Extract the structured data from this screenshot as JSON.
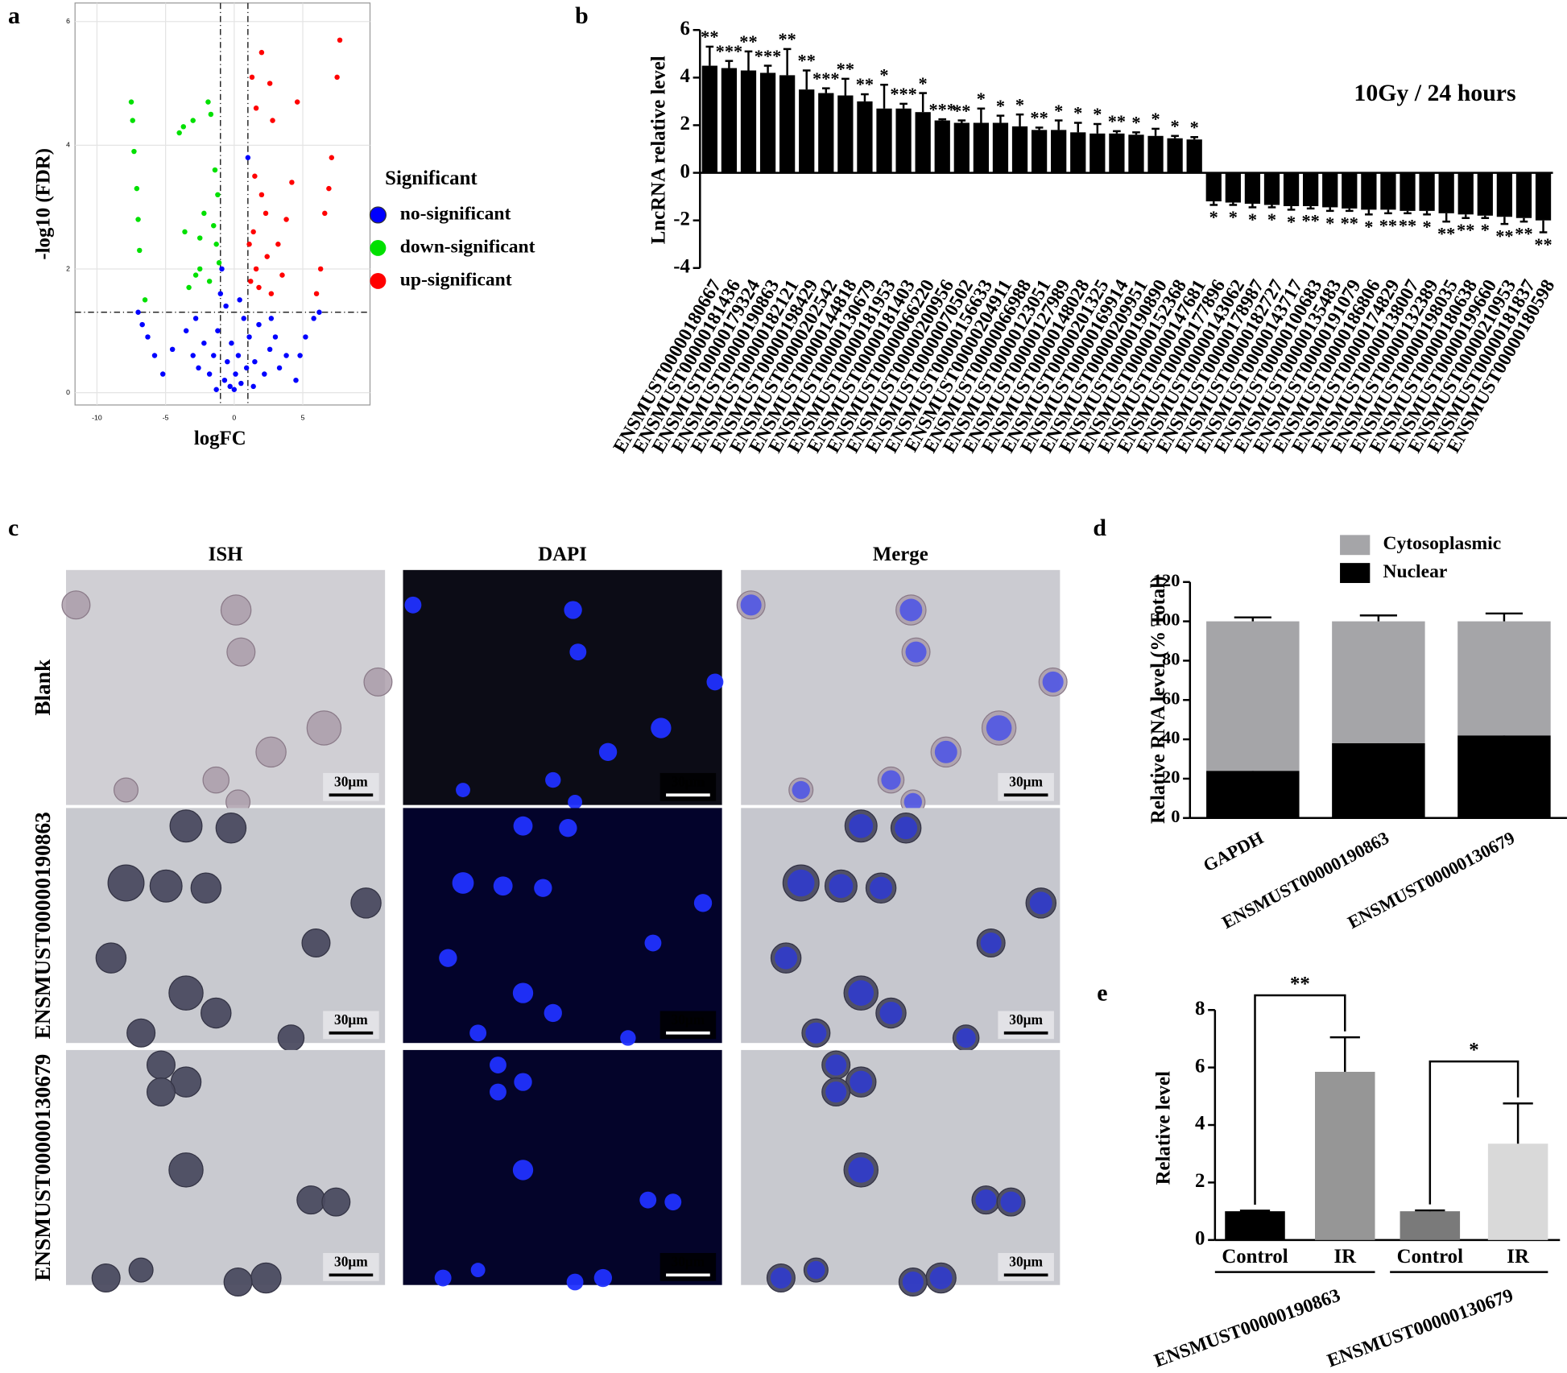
{
  "panel_labels": [
    "a",
    "b",
    "c",
    "d",
    "e"
  ],
  "image_panel": {
    "columns": [
      "ISH",
      "DAPI",
      "Merge"
    ],
    "rows": [
      "Blank",
      "ENSMUST00000190863",
      "ENSMUST00000130679"
    ],
    "scale_bar": "30μm"
  },
  "chart_data": [
    {
      "type": "scatter",
      "xlabel": "logFC",
      "ylabel": "-log10 (FDR)",
      "legend_title": "Significant",
      "xlim": [
        -11.6,
        9.9
      ],
      "ylim": [
        -0.2,
        6.3
      ],
      "xticks": [
        -10,
        -5,
        0,
        5
      ],
      "yticks": [
        0,
        2,
        4,
        6
      ],
      "grid": true,
      "vlines": [
        -1,
        1
      ],
      "hline": 1.3,
      "series": [
        {
          "name": "no-significant",
          "color": "#0000ff",
          "x": [
            -7,
            -6.7,
            -6.3,
            -5.8,
            -5.2,
            -4.5,
            -3.5,
            -3,
            -2.6,
            -2.2,
            -1.8,
            -1.5,
            -1.2,
            -1,
            -0.9,
            -0.7,
            -0.5,
            -0.3,
            -0.2,
            0,
            0.1,
            0.3,
            0.5,
            0.7,
            0.9,
            1.1,
            1.0,
            1.5,
            1.8,
            2.2,
            2.6,
            3,
            3.3,
            3.8,
            4.5,
            4.8,
            5.2,
            5.8,
            6.2,
            -0.6,
            0.4,
            -1.3,
            1.4,
            -2.8,
            2.7
          ],
          "y": [
            1.3,
            1.1,
            0.9,
            0.6,
            0.3,
            0.7,
            1.0,
            0.6,
            0.4,
            0.8,
            0.3,
            0.6,
            1.0,
            1.6,
            2.0,
            0.2,
            0.5,
            0.1,
            0.8,
            0.05,
            0.3,
            0.6,
            0.15,
            1.2,
            0.4,
            0.9,
            3.8,
            0.5,
            1.1,
            0.3,
            0.7,
            0.9,
            0.4,
            0.6,
            0.2,
            0.6,
            0.9,
            1.2,
            1.3,
            1.4,
            1.5,
            0.05,
            0.1,
            1.2,
            1.2
          ]
        },
        {
          "name": "down-significant",
          "color": "#00e000",
          "x": [
            -7.5,
            -7.4,
            -7.3,
            -7.1,
            -7,
            -6.9,
            -6.5,
            -4,
            -3.7,
            -3,
            -2.5,
            -2.2,
            -1.9,
            -1.7,
            -1.4,
            -1.2,
            -1.5,
            -2.8,
            -3.3,
            -1.8,
            -1.1,
            -2.5,
            -3.6,
            -1.3
          ],
          "y": [
            4.7,
            4.4,
            3.9,
            3.3,
            2.8,
            2.3,
            1.5,
            4.2,
            4.3,
            4.4,
            2.5,
            2.9,
            4.7,
            4.5,
            3.6,
            3.2,
            2.7,
            1.9,
            1.7,
            1.8,
            2.1,
            2.0,
            2.6,
            2.4
          ]
        },
        {
          "name": "up-significant",
          "color": "#ff0000",
          "x": [
            7.7,
            7.5,
            7.1,
            6.9,
            6.6,
            6.3,
            6,
            2,
            1.3,
            2.6,
            1.6,
            4.6,
            2.8,
            1.5,
            4.2,
            2,
            3.8,
            1.4,
            2.4,
            3.2,
            1.2,
            1.8,
            2.7,
            3.5,
            1.6,
            2.3,
            1.1
          ],
          "y": [
            5.7,
            5.1,
            3.8,
            3.3,
            2.9,
            2.0,
            1.6,
            5.5,
            5.1,
            5.0,
            4.6,
            4.7,
            4.4,
            3.5,
            3.4,
            3.2,
            2.8,
            2.6,
            2.2,
            2.4,
            1.8,
            1.7,
            1.6,
            1.9,
            2.0,
            2.9,
            2.4
          ]
        }
      ]
    },
    {
      "type": "bar",
      "title": "10Gy / 24 hours",
      "ylabel": "LncRNA relative level",
      "color": "#000000",
      "ylim": [
        -4,
        6
      ],
      "yticks": [
        -4,
        -2,
        0,
        2,
        4,
        6
      ],
      "categories": [
        "ENSMUST00000180667",
        "ENSMUST00000181436",
        "ENSMUST00000179324",
        "ENSMUST00000190863",
        "ENSMUST00000182121",
        "ENSMUST00000198429",
        "ENSMUST00000202542",
        "ENSMUST00000144818",
        "ENSMUST00000130679",
        "ENSMUST00000181953",
        "ENSMUST00000181403",
        "ENSMUST00000066220",
        "ENSMUST00000200956",
        "ENSMUST00000070502",
        "ENSMUST00000156633",
        "ENSMUST00000204911",
        "ENSMUST00000066988",
        "ENSMUST00000123051",
        "ENSMUST00000127989",
        "ENSMUST00000148028",
        "ENSMUST00000201325",
        "ENSMUST00000169914",
        "ENSMUST00000209951",
        "ENSMUST00000190890",
        "ENSMUST00000152368",
        "ENSMUST00000147681",
        "ENSMUST00000177896",
        "ENSMUST00000143062",
        "ENSMUST00000178987",
        "ENSMUST00000182727",
        "ENSMUST00000143717",
        "ENSMUST00000100683",
        "ENSMUST00000135483",
        "ENSMUST00000191079",
        "ENSMUST00000186806",
        "ENSMUST00000174829",
        "ENSMUST00000138007",
        "ENSMUST00000132389",
        "ENSMUST00000198035",
        "ENSMUST00000180638",
        "ENSMUST00000199660",
        "ENSMUST00000210953",
        "ENSMUST00000181837",
        "ENSMUST00000180598"
      ],
      "values": [
        4.5,
        4.4,
        4.3,
        4.2,
        4.1,
        3.5,
        3.35,
        3.25,
        3.0,
        2.7,
        2.7,
        2.55,
        2.2,
        2.1,
        2.1,
        2.1,
        1.95,
        1.8,
        1.8,
        1.7,
        1.65,
        1.65,
        1.6,
        1.55,
        1.45,
        1.4,
        -1.2,
        -1.25,
        -1.3,
        -1.35,
        -1.4,
        -1.4,
        -1.45,
        -1.5,
        -1.55,
        -1.55,
        -1.6,
        -1.6,
        -1.7,
        -1.75,
        -1.8,
        -1.85,
        -1.9,
        -2.0
      ],
      "errors": [
        0.8,
        0.3,
        0.8,
        0.3,
        1.1,
        0.8,
        0.2,
        0.7,
        0.3,
        1.0,
        0.2,
        0.8,
        0.05,
        0.1,
        0.6,
        0.3,
        0.5,
        0.1,
        0.4,
        0.4,
        0.4,
        0.1,
        0.1,
        0.3,
        0.1,
        0.1,
        0.15,
        0.1,
        0.15,
        0.1,
        0.15,
        0.1,
        0.15,
        0.1,
        0.2,
        0.15,
        0.1,
        0.15,
        0.35,
        0.15,
        0.1,
        0.3,
        0.15,
        0.5
      ],
      "significance": [
        "**",
        "***",
        "**",
        "***",
        "**",
        "**",
        "***",
        "**",
        "**",
        "*",
        "***",
        "*",
        "***",
        "**",
        "*",
        "*",
        "*",
        "**",
        "*",
        "*",
        "*",
        "**",
        "*",
        "*",
        "*",
        "*",
        "*",
        "*",
        "*",
        "*",
        "*",
        "**",
        "*",
        "**",
        "*",
        "**",
        "**",
        "*",
        "**",
        "**",
        "*",
        "**",
        "**",
        "**"
      ]
    },
    {
      "type": "stacked_bar",
      "ylabel": "Relative RNA level (% Total)",
      "ylim": [
        0,
        120
      ],
      "yticks": [
        0,
        20,
        40,
        60,
        80,
        100,
        120
      ],
      "categories": [
        "GAPDH",
        "ENSMUST00000190863",
        "ENSMUST00000130679"
      ],
      "series": [
        {
          "name": "Cytosoplasmic",
          "color": "#a5a5a8",
          "values": [
            76,
            62,
            58
          ],
          "errors": [
            2,
            3,
            4
          ]
        },
        {
          "name": "Nuclear",
          "color": "#000000",
          "values": [
            24,
            38,
            42
          ],
          "errors": [
            2.5,
            2.5,
            4.5
          ]
        }
      ]
    },
    {
      "type": "bar",
      "ylabel": "Relative level",
      "ylim": [
        0,
        8
      ],
      "yticks": [
        0,
        2,
        4,
        6,
        8
      ],
      "categories": [
        "Control",
        "IR",
        "Control",
        "IR"
      ],
      "values": [
        1.0,
        5.85,
        1.0,
        3.35
      ],
      "errors": [
        0.02,
        1.2,
        0.03,
        1.4
      ],
      "colors": [
        "#000000",
        "#969696",
        "#7a7a7a",
        "#d9d9d9"
      ],
      "groups": [
        "ENSMUST00000190863",
        "ENSMUST00000130679"
      ],
      "significance": [
        "**",
        "*"
      ]
    }
  ]
}
